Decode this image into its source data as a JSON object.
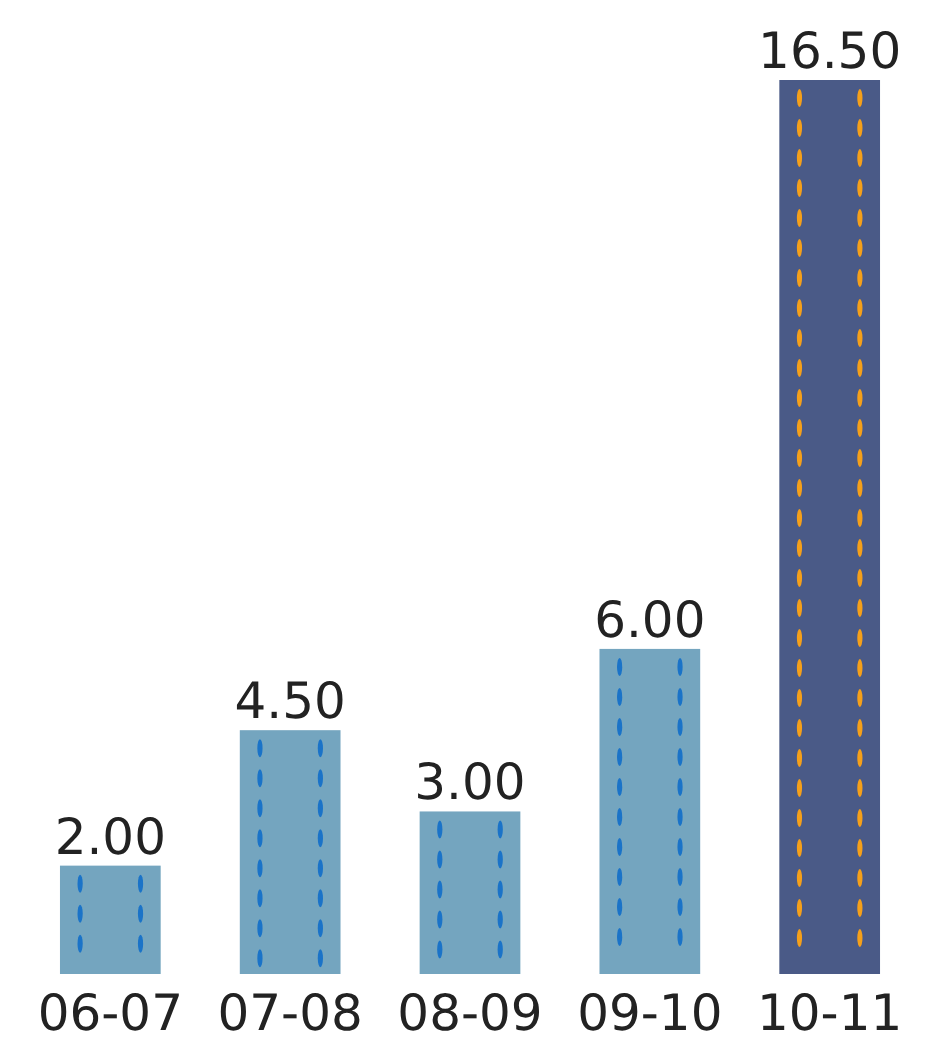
{
  "chart_data": {
    "type": "bar",
    "categories": [
      "06-07",
      "07-08",
      "08-09",
      "09-10",
      "10-11"
    ],
    "values": [
      2.0,
      4.5,
      3.0,
      6.0,
      16.5
    ],
    "colors": [
      "#74a5bf",
      "#74a5bf",
      "#74a5bf",
      "#74a5bf",
      "#4a5a87"
    ],
    "value_labels": [
      "2.00",
      "4.50",
      "3.00",
      "6.00",
      "16.50"
    ],
    "ylim": [
      0,
      16.5
    ],
    "tick_labels": "x"
  }
}
